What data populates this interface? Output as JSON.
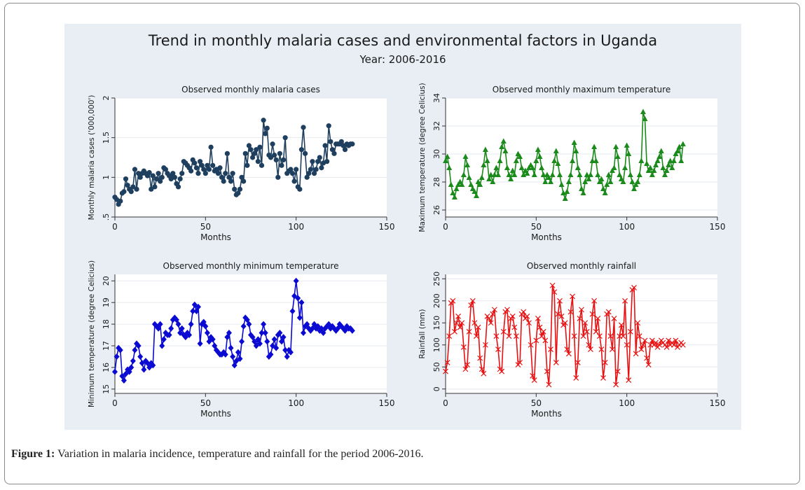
{
  "figure": {
    "title": "Trend in monthly malaria cases and environmental factors in Uganda",
    "subtitle": "Year: 2006-2016"
  },
  "caption": {
    "label": "Figure 1:",
    "text": " Variation in malaria incidence, temperature and rainfall for the period 2006-2016."
  },
  "chart_data": [
    {
      "type": "line",
      "title": "Observed monthly malaria cases",
      "xlabel": "Months",
      "ylabel": "Monthly malaria cases ('000,000')",
      "xlim": [
        0,
        150
      ],
      "ylim": [
        0.5,
        2
      ],
      "xticks": [
        0,
        50,
        100,
        150
      ],
      "yticks": [
        0.5,
        1,
        1.5,
        2
      ],
      "ytick_labels": [
        ".5",
        "1",
        "1.5",
        "2"
      ],
      "color": "#1f3f5f",
      "marker": "circle",
      "x": [
        0,
        1,
        2,
        3,
        4,
        5,
        6,
        7,
        8,
        9,
        10,
        11,
        12,
        13,
        14,
        15,
        16,
        17,
        18,
        19,
        20,
        21,
        22,
        23,
        24,
        25,
        26,
        27,
        28,
        29,
        30,
        31,
        32,
        33,
        34,
        35,
        36,
        37,
        38,
        39,
        40,
        41,
        42,
        43,
        44,
        45,
        46,
        47,
        48,
        49,
        50,
        51,
        52,
        53,
        54,
        55,
        56,
        57,
        58,
        59,
        60,
        61,
        62,
        63,
        64,
        65,
        66,
        67,
        68,
        69,
        70,
        71,
        72,
        73,
        74,
        75,
        76,
        77,
        78,
        79,
        80,
        81,
        82,
        83,
        84,
        85,
        86,
        87,
        88,
        89,
        90,
        91,
        92,
        93,
        94,
        95,
        96,
        97,
        98,
        99,
        100,
        101,
        102,
        103,
        104,
        105,
        106,
        107,
        108,
        109,
        110,
        111,
        112,
        113,
        114,
        115,
        116,
        117,
        118,
        119,
        120,
        121,
        122,
        123,
        124,
        125,
        126,
        127,
        128,
        129,
        130,
        131
      ],
      "y": [
        0.75,
        0.72,
        0.66,
        0.7,
        0.8,
        0.82,
        0.98,
        0.9,
        0.85,
        0.82,
        0.88,
        1.1,
        0.85,
        1.05,
        1.0,
        1.05,
        1.08,
        1.05,
        1.02,
        1.06,
        0.85,
        1.02,
        0.88,
        0.98,
        1.05,
        0.95,
        1.0,
        1.12,
        1.1,
        1.05,
        1.02,
        0.98,
        1.05,
        1.0,
        0.92,
        0.88,
        0.98,
        1.05,
        1.2,
        1.18,
        1.15,
        1.12,
        1.08,
        1.22,
        1.18,
        1.12,
        1.05,
        1.2,
        1.15,
        1.1,
        1.05,
        1.15,
        1.1,
        1.38,
        1.15,
        1.08,
        1.1,
        1.05,
        1.12,
        1.0,
        0.95,
        1.05,
        1.3,
        1.0,
        0.95,
        1.05,
        0.85,
        0.78,
        0.8,
        0.85,
        1.0,
        0.95,
        1.3,
        1.15,
        1.4,
        1.35,
        1.25,
        1.3,
        1.35,
        1.2,
        1.38,
        1.15,
        1.72,
        1.55,
        1.62,
        1.28,
        1.25,
        1.42,
        1.28,
        1.22,
        1.0,
        1.3,
        1.15,
        1.22,
        1.5,
        1.05,
        1.08,
        1.1,
        1.05,
        0.95,
        1.1,
        0.88,
        0.85,
        1.35,
        1.63,
        1.3,
        1.0,
        1.05,
        1.1,
        1.2,
        1.05,
        1.1,
        1.2,
        1.25,
        1.12,
        1.18,
        1.4,
        1.2,
        1.65,
        1.45,
        1.35,
        1.3,
        1.42,
        1.42,
        1.42,
        1.45,
        1.4,
        1.35,
        1.42,
        1.4,
        1.42,
        1.42
      ]
    },
    {
      "type": "line",
      "title": "Observed monthly maximum temperature",
      "xlabel": "Months",
      "ylabel": "Maximum temperature (degree Celicius)",
      "xlim": [
        0,
        150
      ],
      "ylim": [
        25.5,
        34
      ],
      "xticks": [
        0,
        50,
        100,
        150
      ],
      "yticks": [
        26,
        28,
        30,
        32,
        34
      ],
      "ytick_labels": [
        "26",
        "28",
        "30",
        "32",
        "34"
      ],
      "color": "#1a8a1a",
      "marker": "triangle",
      "x": [
        0,
        1,
        2,
        3,
        4,
        5,
        6,
        7,
        8,
        9,
        10,
        11,
        12,
        13,
        14,
        15,
        16,
        17,
        18,
        19,
        20,
        21,
        22,
        23,
        24,
        25,
        26,
        27,
        28,
        29,
        30,
        31,
        32,
        33,
        34,
        35,
        36,
        37,
        38,
        39,
        40,
        41,
        42,
        43,
        44,
        45,
        46,
        47,
        48,
        49,
        50,
        51,
        52,
        53,
        54,
        55,
        56,
        57,
        58,
        59,
        60,
        61,
        62,
        63,
        64,
        65,
        66,
        67,
        68,
        69,
        70,
        71,
        72,
        73,
        74,
        75,
        76,
        77,
        78,
        79,
        80,
        81,
        82,
        83,
        84,
        85,
        86,
        87,
        88,
        89,
        90,
        91,
        92,
        93,
        94,
        95,
        96,
        97,
        98,
        99,
        100,
        101,
        102,
        103,
        104,
        105,
        106,
        107,
        108,
        109,
        110,
        111,
        112,
        113,
        114,
        115,
        116,
        117,
        118,
        119,
        120,
        121,
        122,
        123,
        124,
        125,
        126,
        127,
        128,
        129,
        130,
        131
      ],
      "y": [
        29.5,
        29.8,
        29.0,
        27.8,
        27.2,
        26.9,
        27.5,
        27.8,
        28.0,
        27.8,
        28.5,
        29.8,
        29.2,
        28.3,
        27.8,
        27.5,
        27.3,
        27.0,
        28.0,
        27.8,
        28.3,
        29.2,
        30.3,
        29.5,
        28.2,
        28.5,
        28.0,
        28.5,
        29.0,
        28.5,
        29.5,
        30.5,
        30.9,
        30.2,
        29.0,
        28.5,
        28.2,
        28.8,
        28.5,
        29.5,
        30.0,
        29.8,
        29.0,
        28.5,
        28.8,
        28.6,
        29.0,
        29.2,
        29.0,
        28.5,
        29.5,
        30.3,
        29.8,
        29.0,
        28.5,
        28.0,
        28.5,
        28.3,
        28.0,
        28.5,
        29.5,
        30.2,
        29.3,
        28.5,
        27.8,
        27.2,
        26.8,
        27.3,
        28.0,
        28.5,
        29.5,
        30.8,
        30.2,
        29.0,
        28.5,
        27.5,
        27.2,
        28.0,
        28.5,
        28.2,
        28.5,
        29.5,
        30.5,
        29.5,
        28.5,
        28.0,
        28.2,
        27.5,
        27.2,
        27.8,
        28.5,
        28.0,
        28.8,
        29.0,
        30.5,
        29.8,
        28.5,
        28.2,
        28.0,
        29.0,
        30.6,
        30.0,
        28.5,
        28.0,
        27.5,
        27.8,
        28.0,
        28.5,
        29.5,
        33.0,
        32.5,
        29.3,
        28.8,
        29.0,
        28.5,
        28.8,
        29.2,
        29.5,
        29.8,
        30.2,
        29.0,
        28.5,
        28.8,
        29.2,
        29.5,
        29.0,
        29.5,
        30.0,
        30.2,
        30.5,
        29.5,
        30.7
      ]
    },
    {
      "type": "line",
      "title": "Observed monthly minimum temperature",
      "xlabel": "Months",
      "ylabel": "Minimum temperature (degree Celicius)",
      "xlim": [
        0,
        150
      ],
      "ylim": [
        14.8,
        20.3
      ],
      "xticks": [
        0,
        50,
        100,
        150
      ],
      "yticks": [
        15,
        16,
        17,
        18,
        19,
        20
      ],
      "ytick_labels": [
        "15",
        "16",
        "17",
        "18",
        "19",
        "20"
      ],
      "color": "#0a0ad2",
      "marker": "diamond",
      "x": [
        0,
        1,
        2,
        3,
        4,
        5,
        6,
        7,
        8,
        9,
        10,
        11,
        12,
        13,
        14,
        15,
        16,
        17,
        18,
        19,
        20,
        21,
        22,
        23,
        24,
        25,
        26,
        27,
        28,
        29,
        30,
        31,
        32,
        33,
        34,
        35,
        36,
        37,
        38,
        39,
        40,
        41,
        42,
        43,
        44,
        45,
        46,
        47,
        48,
        49,
        50,
        51,
        52,
        53,
        54,
        55,
        56,
        57,
        58,
        59,
        60,
        61,
        62,
        63,
        64,
        65,
        66,
        67,
        68,
        69,
        70,
        71,
        72,
        73,
        74,
        75,
        76,
        77,
        78,
        79,
        80,
        81,
        82,
        83,
        84,
        85,
        86,
        87,
        88,
        89,
        90,
        91,
        92,
        93,
        94,
        95,
        96,
        97,
        98,
        99,
        100,
        101,
        102,
        103,
        104,
        105,
        106,
        107,
        108,
        109,
        110,
        111,
        112,
        113,
        114,
        115,
        116,
        117,
        118,
        119,
        120,
        121,
        122,
        123,
        124,
        125,
        126,
        127,
        128,
        129,
        130,
        131
      ],
      "y": [
        15.8,
        16.5,
        16.9,
        16.8,
        15.6,
        15.4,
        15.7,
        15.9,
        15.8,
        16.0,
        16.3,
        16.8,
        17.1,
        17.0,
        16.5,
        16.2,
        15.9,
        16.3,
        16.2,
        16.0,
        16.2,
        16.1,
        18.0,
        17.9,
        17.8,
        18.0,
        17.0,
        17.3,
        17.6,
        17.5,
        17.5,
        17.8,
        18.2,
        18.3,
        18.2,
        18.0,
        17.6,
        17.8,
        17.5,
        17.4,
        17.6,
        17.5,
        18.0,
        18.6,
        18.9,
        18.6,
        18.8,
        17.1,
        18.0,
        18.1,
        17.9,
        17.6,
        17.2,
        17.4,
        17.3,
        17.0,
        16.8,
        16.7,
        16.6,
        16.6,
        16.7,
        16.6,
        17.4,
        17.6,
        16.9,
        16.5,
        16.1,
        16.3,
        16.7,
        16.4,
        17.2,
        17.9,
        18.3,
        18.2,
        18.0,
        17.5,
        17.4,
        17.2,
        17.0,
        17.3,
        17.1,
        17.6,
        18.0,
        17.6,
        17.2,
        16.5,
        16.6,
        17.0,
        17.3,
        16.9,
        17.5,
        17.6,
        17.2,
        17.4,
        16.8,
        16.5,
        16.8,
        16.7,
        18.6,
        19.3,
        20.0,
        19.2,
        18.3,
        19.0,
        17.6,
        17.9,
        18.0,
        17.8,
        17.7,
        17.8,
        18.0,
        17.8,
        17.9,
        17.7,
        17.8,
        17.6,
        17.8,
        17.9,
        18.0,
        17.8,
        17.9,
        17.8,
        17.7,
        17.8,
        18.0,
        17.9,
        17.8,
        17.7,
        17.9,
        17.8,
        17.8,
        17.7
      ]
    },
    {
      "type": "line",
      "title": "Observed monthly rainfall",
      "xlabel": "Months",
      "ylabel": "Rainfall (mm)",
      "xlim": [
        0,
        150
      ],
      "ylim": [
        -10,
        260
      ],
      "xticks": [
        0,
        50,
        100,
        150
      ],
      "yticks": [
        0,
        50,
        100,
        150,
        200,
        250
      ],
      "ytick_labels": [
        "0",
        "50",
        "100",
        "150",
        "200",
        "250"
      ],
      "color": "#e81010",
      "marker": "x",
      "x": [
        0,
        1,
        2,
        3,
        4,
        5,
        6,
        7,
        8,
        9,
        10,
        11,
        12,
        13,
        14,
        15,
        16,
        17,
        18,
        19,
        20,
        21,
        22,
        23,
        24,
        25,
        26,
        27,
        28,
        29,
        30,
        31,
        32,
        33,
        34,
        35,
        36,
        37,
        38,
        39,
        40,
        41,
        42,
        43,
        44,
        45,
        46,
        47,
        48,
        49,
        50,
        51,
        52,
        53,
        54,
        55,
        56,
        57,
        58,
        59,
        60,
        61,
        62,
        63,
        64,
        65,
        66,
        67,
        68,
        69,
        70,
        71,
        72,
        73,
        74,
        75,
        76,
        77,
        78,
        79,
        80,
        81,
        82,
        83,
        84,
        85,
        86,
        87,
        88,
        89,
        90,
        91,
        92,
        93,
        94,
        95,
        96,
        97,
        98,
        99,
        100,
        101,
        102,
        103,
        104,
        105,
        106,
        107,
        108,
        109,
        110,
        111,
        112,
        113,
        114,
        115,
        116,
        117,
        118,
        119,
        120,
        121,
        122,
        123,
        124,
        125,
        126,
        127,
        128,
        129,
        130,
        131
      ],
      "y": [
        40,
        60,
        120,
        195,
        200,
        130,
        150,
        165,
        140,
        150,
        95,
        45,
        55,
        130,
        190,
        200,
        150,
        120,
        140,
        70,
        45,
        35,
        100,
        165,
        160,
        150,
        170,
        180,
        120,
        90,
        45,
        40,
        130,
        175,
        180,
        120,
        160,
        165,
        140,
        120,
        55,
        60,
        170,
        175,
        160,
        165,
        150,
        100,
        30,
        20,
        110,
        160,
        140,
        120,
        130,
        110,
        40,
        10,
        90,
        235,
        220,
        60,
        170,
        200,
        165,
        145,
        150,
        90,
        80,
        175,
        210,
        120,
        25,
        60,
        160,
        180,
        120,
        150,
        130,
        100,
        90,
        170,
        200,
        130,
        160,
        120,
        90,
        25,
        60,
        170,
        175,
        120,
        90,
        160,
        10,
        40,
        120,
        145,
        120,
        200,
        100,
        20,
        130,
        225,
        230,
        80,
        150,
        120,
        90,
        100,
        110,
        70,
        55,
        100,
        110,
        100,
        105,
        95,
        100,
        110,
        105,
        100,
        95,
        110,
        100,
        105,
        100,
        110,
        95,
        100,
        105,
        100
      ]
    }
  ]
}
